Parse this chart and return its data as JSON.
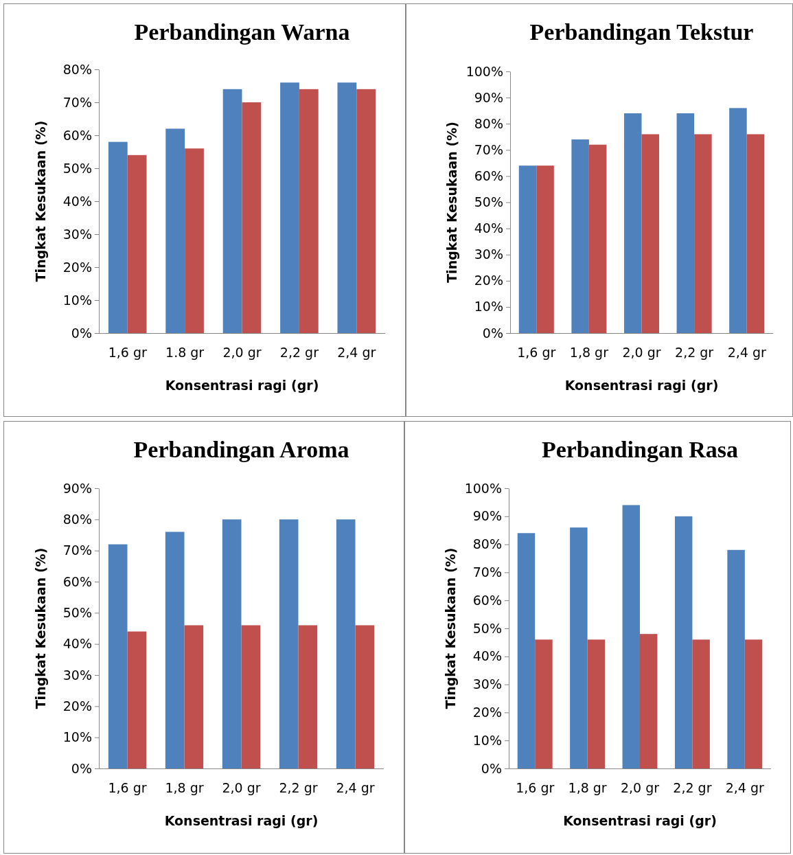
{
  "chart_data": [
    {
      "type": "bar",
      "title": "Perbandingan Warna",
      "xlabel": "Konsentrasi ragi (gr)",
      "ylabel": "Tingkat Kesukaan (%)",
      "categories": [
        "1,6 gr",
        "1.8 gr",
        "2,0 gr",
        "2,2 gr",
        "2,4 gr"
      ],
      "ylim": [
        0,
        80
      ],
      "yticks": [
        {
          "value": 0,
          "label": "0%"
        },
        {
          "value": 10,
          "label": "10%"
        },
        {
          "value": 20,
          "label": "20%"
        },
        {
          "value": 30,
          "label": "30%"
        },
        {
          "value": 40,
          "label": "40%"
        },
        {
          "value": 50,
          "label": "50%"
        },
        {
          "value": 60,
          "label": "60%"
        },
        {
          "value": 70,
          "label": "70%"
        },
        {
          "value": 80,
          "label": "80%"
        }
      ],
      "series": [
        {
          "color": "#4f81bd",
          "values": [
            58,
            62,
            74,
            76,
            76
          ]
        },
        {
          "color": "#c0504d",
          "values": [
            54,
            56,
            70,
            74,
            74
          ]
        }
      ]
    },
    {
      "type": "bar",
      "title": "Perbandingan Tekstur",
      "xlabel": "Konsentrasi ragi (gr)",
      "ylabel": "Tingkat Kesukaan (%)",
      "categories": [
        "1,6 gr",
        "1,8 gr",
        "2,0 gr",
        "2,2 gr",
        "2,4 gr"
      ],
      "ylim": [
        0,
        100
      ],
      "yticks": [
        {
          "value": 0,
          "label": "0%"
        },
        {
          "value": 10,
          "label": "10%"
        },
        {
          "value": 20,
          "label": "20%"
        },
        {
          "value": 30,
          "label": "30%"
        },
        {
          "value": 40,
          "label": "40%"
        },
        {
          "value": 50,
          "label": "50%"
        },
        {
          "value": 60,
          "label": "60%"
        },
        {
          "value": 70,
          "label": "70%"
        },
        {
          "value": 80,
          "label": "80%"
        },
        {
          "value": 90,
          "label": "90%"
        },
        {
          "value": 100,
          "label": "100%"
        }
      ],
      "series": [
        {
          "color": "#4f81bd",
          "values": [
            64,
            74,
            84,
            84,
            86
          ]
        },
        {
          "color": "#c0504d",
          "values": [
            64,
            72,
            76,
            76,
            76
          ]
        }
      ]
    },
    {
      "type": "bar",
      "title": "Perbandingan Aroma",
      "xlabel": "Konsentrasi ragi (gr)",
      "ylabel": "Tingkat Kesukaan (%)",
      "categories": [
        "1,6 gr",
        "1,8 gr",
        "2,0 gr",
        "2,2 gr",
        "2,4 gr"
      ],
      "ylim": [
        0,
        90
      ],
      "yticks": [
        {
          "value": 0,
          "label": "0%"
        },
        {
          "value": 10,
          "label": "10%"
        },
        {
          "value": 20,
          "label": "20%"
        },
        {
          "value": 30,
          "label": "30%"
        },
        {
          "value": 40,
          "label": "40%"
        },
        {
          "value": 50,
          "label": "50%"
        },
        {
          "value": 60,
          "label": "60%"
        },
        {
          "value": 70,
          "label": "70%"
        },
        {
          "value": 80,
          "label": "80%"
        },
        {
          "value": 90,
          "label": "90%"
        }
      ],
      "series": [
        {
          "color": "#4f81bd",
          "values": [
            72,
            76,
            80,
            80,
            80
          ]
        },
        {
          "color": "#c0504d",
          "values": [
            44,
            46,
            46,
            46,
            46
          ]
        }
      ]
    },
    {
      "type": "bar",
      "title": "Perbandingan Rasa",
      "xlabel": "Konsentrasi ragi (gr)",
      "ylabel": "Tingkat Kesukaan (%)",
      "categories": [
        "1,6 gr",
        "1,8 gr",
        "2,0 gr",
        "2,2 gr",
        "2,4 gr"
      ],
      "ylim": [
        0,
        100
      ],
      "yticks": [
        {
          "value": 0,
          "label": "0%"
        },
        {
          "value": 10,
          "label": "10%"
        },
        {
          "value": 20,
          "label": "20%"
        },
        {
          "value": 30,
          "label": "30%"
        },
        {
          "value": 40,
          "label": "40%"
        },
        {
          "value": 50,
          "label": "50%"
        },
        {
          "value": 60,
          "label": "60%"
        },
        {
          "value": 70,
          "label": "70%"
        },
        {
          "value": 80,
          "label": "80%"
        },
        {
          "value": 90,
          "label": "90%"
        },
        {
          "value": 100,
          "label": "100%"
        }
      ],
      "series": [
        {
          "color": "#4f81bd",
          "values": [
            84,
            86,
            94,
            90,
            78
          ]
        },
        {
          "color": "#c0504d",
          "values": [
            46,
            46,
            48,
            46,
            46
          ]
        }
      ]
    }
  ]
}
